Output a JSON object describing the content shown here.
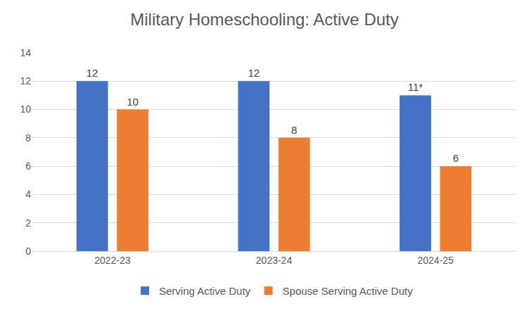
{
  "chart_data": {
    "type": "bar",
    "title": "Military Homeschooling: Active Duty",
    "categories": [
      "2022-23",
      "2023-24",
      "2024-25"
    ],
    "series": [
      {
        "name": "Serving Active Duty",
        "color": "#4472c4",
        "values": [
          12,
          12,
          11
        ],
        "value_labels": [
          "12",
          "12",
          "11*"
        ]
      },
      {
        "name": "Spouse Serving Active Duty",
        "color": "#ed7d31",
        "values": [
          10,
          8,
          6
        ],
        "value_labels": [
          "10",
          "8",
          "6"
        ]
      }
    ],
    "ylim": [
      0,
      14
    ],
    "yticks": [
      0,
      2,
      4,
      6,
      8,
      10,
      12,
      14
    ],
    "grid": true,
    "legend": "bottom",
    "data_labels": true
  }
}
